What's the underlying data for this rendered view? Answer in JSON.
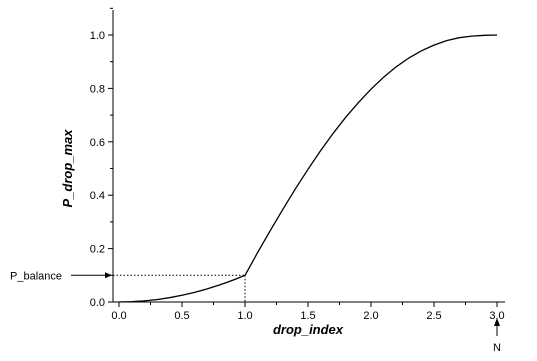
{
  "chart_data": {
    "type": "line",
    "title": "",
    "xlabel": "drop_index",
    "ylabel": "P_drop_max",
    "xlim": [
      0.0,
      3.1
    ],
    "ylim": [
      0.0,
      1.1
    ],
    "xticks": [
      "0.0",
      "0.5",
      "1.0",
      "1.5",
      "2.0",
      "2.5",
      "3.0"
    ],
    "yticks": [
      "0.0",
      "0.2",
      "0.4",
      "0.6",
      "0.8",
      "1.0"
    ],
    "grid": false,
    "legend": "none",
    "series": [
      {
        "color": "#000000",
        "x": [
          0.0,
          0.1,
          0.2,
          0.3,
          0.4,
          0.5,
          0.6,
          0.7,
          0.8,
          0.9,
          1.0,
          1.1,
          1.2,
          1.3,
          1.4,
          1.5,
          1.6,
          1.7,
          1.8,
          1.9,
          2.0,
          2.1,
          2.2,
          2.3,
          2.4,
          2.5,
          2.6,
          2.7,
          2.8,
          2.9,
          3.0
        ],
        "y": [
          0.0,
          0.001,
          0.004,
          0.009,
          0.016,
          0.025,
          0.036,
          0.049,
          0.064,
          0.081,
          0.1,
          0.185,
          0.267,
          0.347,
          0.424,
          0.497,
          0.567,
          0.632,
          0.692,
          0.747,
          0.797,
          0.842,
          0.881,
          0.914,
          0.941,
          0.962,
          0.979,
          0.99,
          0.996,
          0.999,
          1.0
        ]
      }
    ],
    "annotations": [
      {
        "label": "P_balance",
        "x": 1.0,
        "y": 0.1,
        "side": "left"
      },
      {
        "label": "N",
        "x": 3.0,
        "side": "bottom"
      }
    ]
  }
}
